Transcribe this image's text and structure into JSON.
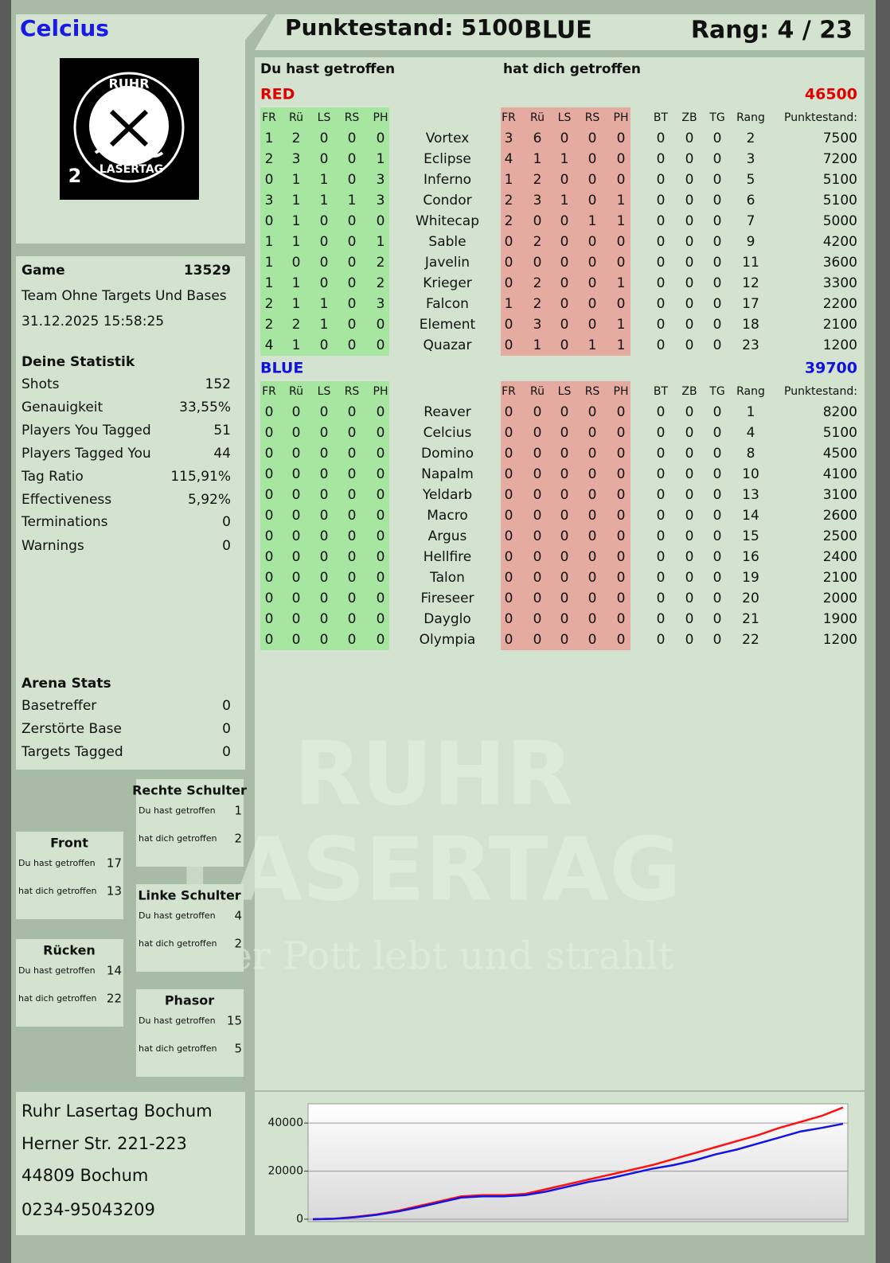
{
  "header": {
    "player": "Celcius",
    "score": "Punktestand: 5100",
    "team": "BLUE",
    "rank": "Rang: 4 / 23"
  },
  "logo": {
    "top": "RUHR",
    "bottom": "LASERTAG",
    "badge": "2"
  },
  "watermark": {
    "line1": "RUHR",
    "line2": "LASERTAG",
    "slogan": "Der Pott lebt und strahlt"
  },
  "game": {
    "label": "Game",
    "id": 13529,
    "mode": "Team Ohne Targets Und Bases",
    "date": "31.12.2025 15:58:25"
  },
  "stats": {
    "title": "Deine Statistik",
    "rows": [
      [
        "Shots",
        152
      ],
      [
        "Genauigkeit",
        "33,55%"
      ],
      [
        "Players You Tagged",
        51
      ],
      [
        "Players Tagged You",
        44
      ],
      [
        "Tag Ratio",
        "115,91%"
      ],
      [
        "Effectiveness",
        "5,92%"
      ],
      [
        "Terminations",
        0
      ],
      [
        "Warnings",
        0
      ]
    ]
  },
  "arena": {
    "title": "Arena Stats",
    "rows": [
      [
        "Basetreffer",
        0
      ],
      [
        "Zerstörte Base",
        0
      ],
      [
        "Targets Tagged",
        0
      ]
    ]
  },
  "zones": [
    {
      "title": "Rechte Schulter",
      "rows": [
        [
          "Du hast getroffen",
          1
        ],
        [
          "hat dich getroffen",
          2
        ]
      ]
    },
    {
      "title": "Front",
      "rows": [
        [
          "Du hast getroffen",
          17
        ],
        [
          "hat dich getroffen",
          13
        ]
      ]
    },
    {
      "title": "Linke Schulter",
      "rows": [
        [
          "Du hast getroffen",
          4
        ],
        [
          "hat dich getroffen",
          2
        ]
      ]
    },
    {
      "title": "Rücken",
      "rows": [
        [
          "Du hast getroffen",
          14
        ],
        [
          "hat dich getroffen",
          22
        ]
      ]
    },
    {
      "title": "Phasor",
      "rows": [
        [
          "Du hast getroffen",
          15
        ],
        [
          "hat dich getroffen",
          5
        ]
      ]
    }
  ],
  "table": {
    "hit_title": "Du hast getroffen",
    "got_hit_title": "hat dich getroffen",
    "hit_columns": [
      "FR",
      "Rü",
      "LS",
      "RS",
      "PH"
    ],
    "got_hit_columns": [
      "FR",
      "Rü",
      "LS",
      "RS",
      "PH"
    ],
    "stat_columns": [
      "BT",
      "ZB",
      "TG",
      "Rang",
      "Punktestand:"
    ],
    "teams": [
      {
        "name": "RED",
        "color": "#e00000",
        "score": 46500,
        "rows": [
          {
            "name": "Vortex",
            "hit": [
              1,
              2,
              0,
              0,
              0
            ],
            "got_hit": [
              3,
              6,
              0,
              0,
              0
            ],
            "stats": [
              0,
              0,
              0,
              2,
              7500
            ]
          },
          {
            "name": "Eclipse",
            "hit": [
              2,
              3,
              0,
              0,
              1
            ],
            "got_hit": [
              4,
              1,
              1,
              0,
              0
            ],
            "stats": [
              0,
              0,
              0,
              3,
              7200
            ]
          },
          {
            "name": "Inferno",
            "hit": [
              0,
              1,
              1,
              0,
              3
            ],
            "got_hit": [
              1,
              2,
              0,
              0,
              0
            ],
            "stats": [
              0,
              0,
              0,
              5,
              5100
            ]
          },
          {
            "name": "Condor",
            "hit": [
              3,
              1,
              1,
              1,
              3
            ],
            "got_hit": [
              2,
              3,
              1,
              0,
              1
            ],
            "stats": [
              0,
              0,
              0,
              6,
              5100
            ]
          },
          {
            "name": "Whitecap",
            "hit": [
              0,
              1,
              0,
              0,
              0
            ],
            "got_hit": [
              2,
              0,
              0,
              1,
              1
            ],
            "stats": [
              0,
              0,
              0,
              7,
              5000
            ]
          },
          {
            "name": "Sable",
            "hit": [
              1,
              1,
              0,
              0,
              1
            ],
            "got_hit": [
              0,
              2,
              0,
              0,
              0
            ],
            "stats": [
              0,
              0,
              0,
              9,
              4200
            ]
          },
          {
            "name": "Javelin",
            "hit": [
              1,
              0,
              0,
              0,
              2
            ],
            "got_hit": [
              0,
              0,
              0,
              0,
              0
            ],
            "stats": [
              0,
              0,
              0,
              11,
              3600
            ]
          },
          {
            "name": "Krieger",
            "hit": [
              1,
              1,
              0,
              0,
              2
            ],
            "got_hit": [
              0,
              2,
              0,
              0,
              1
            ],
            "stats": [
              0,
              0,
              0,
              12,
              3300
            ]
          },
          {
            "name": "Falcon",
            "hit": [
              2,
              1,
              1,
              0,
              3
            ],
            "got_hit": [
              1,
              2,
              0,
              0,
              0
            ],
            "stats": [
              0,
              0,
              0,
              17,
              2200
            ]
          },
          {
            "name": "Element",
            "hit": [
              2,
              2,
              1,
              0,
              0
            ],
            "got_hit": [
              0,
              3,
              0,
              0,
              1
            ],
            "stats": [
              0,
              0,
              0,
              18,
              2100
            ]
          },
          {
            "name": "Quazar",
            "hit": [
              4,
              1,
              0,
              0,
              0
            ],
            "got_hit": [
              0,
              1,
              0,
              1,
              1
            ],
            "stats": [
              0,
              0,
              0,
              23,
              1200
            ]
          }
        ]
      },
      {
        "name": "BLUE",
        "color": "#1010e0",
        "score": 39700,
        "rows": [
          {
            "name": "Reaver",
            "hit": [
              0,
              0,
              0,
              0,
              0
            ],
            "got_hit": [
              0,
              0,
              0,
              0,
              0
            ],
            "stats": [
              0,
              0,
              0,
              1,
              8200
            ]
          },
          {
            "name": "Celcius",
            "hit": [
              0,
              0,
              0,
              0,
              0
            ],
            "got_hit": [
              0,
              0,
              0,
              0,
              0
            ],
            "stats": [
              0,
              0,
              0,
              4,
              5100
            ]
          },
          {
            "name": "Domino",
            "hit": [
              0,
              0,
              0,
              0,
              0
            ],
            "got_hit": [
              0,
              0,
              0,
              0,
              0
            ],
            "stats": [
              0,
              0,
              0,
              8,
              4500
            ]
          },
          {
            "name": "Napalm",
            "hit": [
              0,
              0,
              0,
              0,
              0
            ],
            "got_hit": [
              0,
              0,
              0,
              0,
              0
            ],
            "stats": [
              0,
              0,
              0,
              10,
              4100
            ]
          },
          {
            "name": "Yeldarb",
            "hit": [
              0,
              0,
              0,
              0,
              0
            ],
            "got_hit": [
              0,
              0,
              0,
              0,
              0
            ],
            "stats": [
              0,
              0,
              0,
              13,
              3100
            ]
          },
          {
            "name": "Macro",
            "hit": [
              0,
              0,
              0,
              0,
              0
            ],
            "got_hit": [
              0,
              0,
              0,
              0,
              0
            ],
            "stats": [
              0,
              0,
              0,
              14,
              2600
            ]
          },
          {
            "name": "Argus",
            "hit": [
              0,
              0,
              0,
              0,
              0
            ],
            "got_hit": [
              0,
              0,
              0,
              0,
              0
            ],
            "stats": [
              0,
              0,
              0,
              15,
              2500
            ]
          },
          {
            "name": "Hellfire",
            "hit": [
              0,
              0,
              0,
              0,
              0
            ],
            "got_hit": [
              0,
              0,
              0,
              0,
              0
            ],
            "stats": [
              0,
              0,
              0,
              16,
              2400
            ]
          },
          {
            "name": "Talon",
            "hit": [
              0,
              0,
              0,
              0,
              0
            ],
            "got_hit": [
              0,
              0,
              0,
              0,
              0
            ],
            "stats": [
              0,
              0,
              0,
              19,
              2100
            ]
          },
          {
            "name": "Fireseer",
            "hit": [
              0,
              0,
              0,
              0,
              0
            ],
            "got_hit": [
              0,
              0,
              0,
              0,
              0
            ],
            "stats": [
              0,
              0,
              0,
              20,
              2000
            ]
          },
          {
            "name": "Dayglo",
            "hit": [
              0,
              0,
              0,
              0,
              0
            ],
            "got_hit": [
              0,
              0,
              0,
              0,
              0
            ],
            "stats": [
              0,
              0,
              0,
              21,
              1900
            ]
          },
          {
            "name": "Olympia",
            "hit": [
              0,
              0,
              0,
              0,
              0
            ],
            "got_hit": [
              0,
              0,
              0,
              0,
              0
            ],
            "stats": [
              0,
              0,
              0,
              22,
              1200
            ]
          }
        ]
      }
    ]
  },
  "address": [
    "Ruhr Lasertag Bochum",
    "Herner Str. 221-223",
    "44809 Bochum",
    "0234-95043209"
  ],
  "chart": {
    "type": "line",
    "ylim": [
      -1000,
      48000
    ],
    "yticks": [
      0,
      20000,
      40000
    ],
    "grid": true,
    "series": [
      {
        "color": "#ff1010",
        "values": [
          0,
          200,
          1000,
          2000,
          3500,
          5500,
          7500,
          9500,
          10000,
          10000,
          10500,
          12500,
          14500,
          16500,
          18500,
          20500,
          22500,
          25000,
          27500,
          30000,
          32500,
          35000,
          38000,
          40500,
          43000,
          46500
        ]
      },
      {
        "color": "#1414e6",
        "values": [
          0,
          200,
          800,
          1800,
          3200,
          5000,
          7000,
          9000,
          9500,
          9500,
          10000,
          11500,
          13500,
          15500,
          17000,
          19000,
          21000,
          22500,
          24500,
          27000,
          29000,
          31500,
          34000,
          36500,
          38000,
          39700
        ]
      }
    ]
  }
}
